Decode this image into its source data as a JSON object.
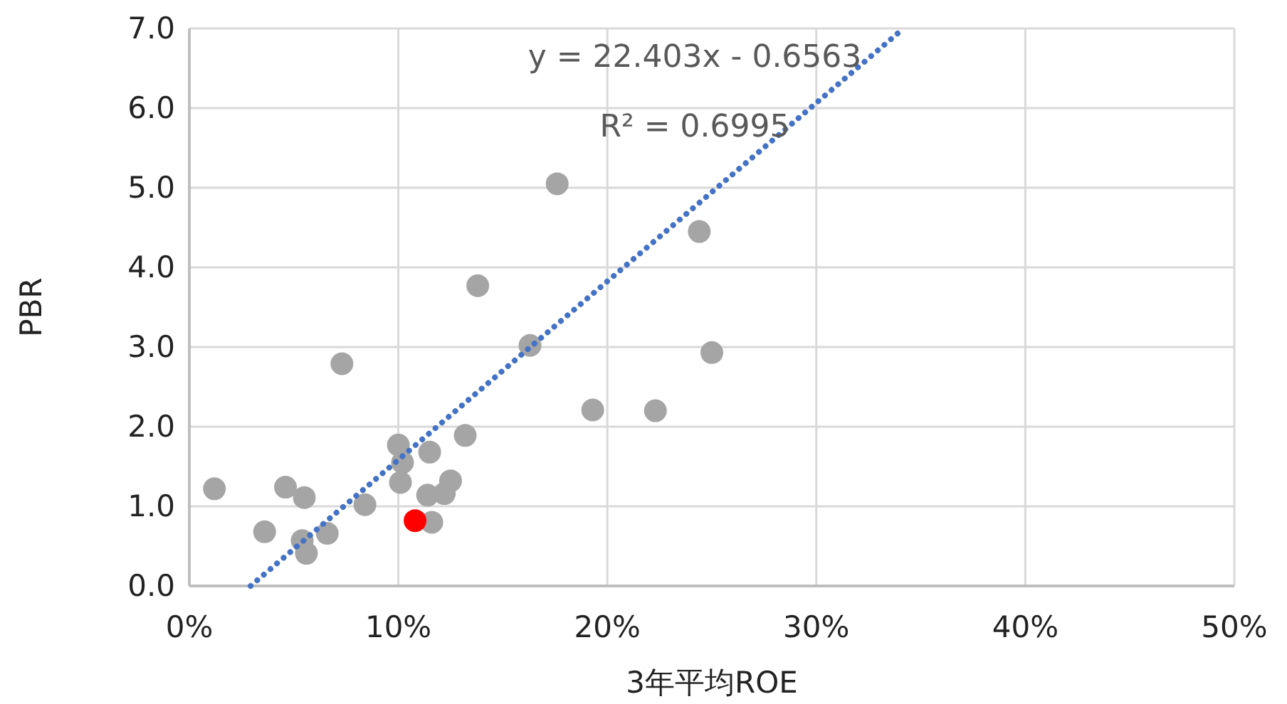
{
  "chart_data": {
    "type": "scatter",
    "xlabel": "3年平均ROE",
    "ylabel": "PBR",
    "marker": "circle",
    "grid": true,
    "xlim": [
      0,
      50
    ],
    "xticks": [
      {
        "value": 0,
        "label": "0%"
      },
      {
        "value": 10,
        "label": "10%"
      },
      {
        "value": 20,
        "label": "20%"
      },
      {
        "value": 30,
        "label": "30%"
      },
      {
        "value": 40,
        "label": "40%"
      },
      {
        "value": 50,
        "label": "50%"
      }
    ],
    "ylim": [
      0,
      7
    ],
    "yticks": [
      {
        "value": 0,
        "label": "0.0"
      },
      {
        "value": 1,
        "label": "1.0"
      },
      {
        "value": 2,
        "label": "2.0"
      },
      {
        "value": 3,
        "label": "3.0"
      },
      {
        "value": 4,
        "label": "4.0"
      },
      {
        "value": 5,
        "label": "5.0"
      },
      {
        "value": 6,
        "label": "6.0"
      },
      {
        "value": 7,
        "label": "7.0"
      }
    ],
    "annotations": [
      "y = 22.403x - 0.6563",
      "R² = 0.6995"
    ],
    "series": [
      {
        "color": "#a5a5a5",
        "x": [
          1.2,
          3.6,
          4.6,
          5.5,
          5.4,
          5.6,
          6.6,
          7.3,
          8.4,
          10.0,
          10.2,
          10.1,
          11.5,
          11.4,
          11.6,
          12.2,
          12.5,
          13.2,
          13.8,
          16.3,
          17.6,
          19.3,
          22.3,
          24.4,
          25.0
        ],
        "values": [
          1.22,
          0.68,
          1.24,
          1.11,
          0.57,
          0.41,
          0.66,
          2.79,
          1.02,
          1.77,
          1.55,
          1.3,
          1.68,
          1.14,
          0.8,
          1.16,
          1.32,
          1.89,
          3.77,
          3.02,
          5.05,
          2.21,
          2.2,
          4.45,
          2.93
        ]
      },
      {
        "color": "#ff0000",
        "x": [
          10.8
        ],
        "values": [
          0.82
        ]
      },
      {
        "type": "line",
        "color": "#4472c4",
        "line_style": "dotted",
        "marker": "none",
        "x": [
          2.93,
          34.17
        ],
        "values": [
          0.0,
          7.0
        ]
      }
    ]
  }
}
